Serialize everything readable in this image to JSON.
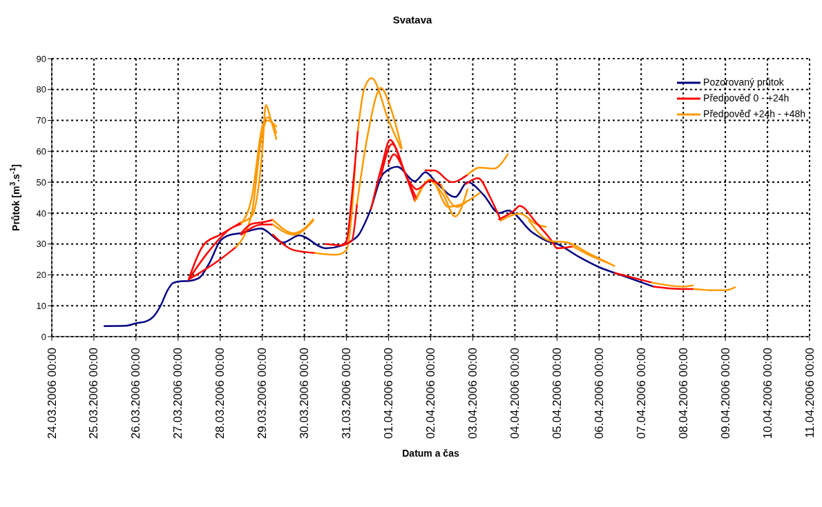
{
  "chart_data": {
    "type": "line",
    "title": "Svatava",
    "xlabel": "Datum a čas",
    "ylabel": "Průtok [m$^{3}$.s$^{-1}$]",
    "xlim": [
      "2006-03-24T00:00",
      "2006-04-11T00:00"
    ],
    "xticks": [
      {
        "value": "2006-03-24T00:00",
        "label": "24.03.2006 00:00"
      },
      {
        "value": "2006-03-25T00:00",
        "label": "25.03.2006 00:00"
      },
      {
        "value": "2006-03-26T00:00",
        "label": "26.03.2006 00:00"
      },
      {
        "value": "2006-03-27T00:00",
        "label": "27.03.2006 00:00"
      },
      {
        "value": "2006-03-28T00:00",
        "label": "28.03.2006 00:00"
      },
      {
        "value": "2006-03-29T00:00",
        "label": "29.03.2006 00:00"
      },
      {
        "value": "2006-03-30T00:00",
        "label": "30.03.2006 00:00"
      },
      {
        "value": "2006-03-31T00:00",
        "label": "31.03.2006 00:00"
      },
      {
        "value": "2006-04-01T00:00",
        "label": "01.04.2006 00:00"
      },
      {
        "value": "2006-04-02T00:00",
        "label": "02.04.2006 00:00"
      },
      {
        "value": "2006-04-03T00:00",
        "label": "03.04.2006 00:00"
      },
      {
        "value": "2006-04-04T00:00",
        "label": "04.04.2006 00:00"
      },
      {
        "value": "2006-04-05T00:00",
        "label": "05.04.2006 00:00"
      },
      {
        "value": "2006-04-06T00:00",
        "label": "06.04.2006 00:00"
      },
      {
        "value": "2006-04-07T00:00",
        "label": "07.04.2006 00:00"
      },
      {
        "value": "2006-04-08T00:00",
        "label": "08.04.2006 00:00"
      },
      {
        "value": "2006-04-09T00:00",
        "label": "09.04.2006 00:00"
      },
      {
        "value": "2006-04-10T00:00",
        "label": "10.04.2006 00:00"
      },
      {
        "value": "2006-04-11T00:00",
        "label": "11.04.2006 00:00"
      }
    ],
    "ylim": [
      0,
      90
    ],
    "yticks": [
      0,
      10,
      20,
      30,
      40,
      50,
      60,
      70,
      80,
      90
    ],
    "grid": true,
    "legend": "top right",
    "line_style": "solid",
    "series": [
      {
        "name": "Pozorovaný průtok",
        "color": "#000080",
        "x": [
          "2006-03-25T06:00",
          "2006-03-25T18:00",
          "2006-03-26T00:00",
          "2006-03-26T06:00",
          "2006-03-26T10:00",
          "2006-03-26T14:00",
          "2006-03-26T18:00",
          "2006-03-26T21:00",
          "2006-03-27T00:00",
          "2006-03-27T07:00",
          "2006-03-27T12:00",
          "2006-03-27T18:00",
          "2006-03-28T00:00",
          "2006-03-28T06:00",
          "2006-03-28T12:00",
          "2006-03-28T23:00",
          "2006-03-29T12:00",
          "2006-03-29T21:00",
          "2006-03-30T12:00",
          "2006-03-30T21:00",
          "2006-03-31T01:00",
          "2006-03-31T07:00",
          "2006-03-31T13:00",
          "2006-03-31T21:00",
          "2006-04-01T05:00",
          "2006-04-01T15:00",
          "2006-04-01T21:00",
          "2006-04-02T03:00",
          "2006-04-02T14:00",
          "2006-04-02T21:00",
          "2006-04-03T06:00",
          "2006-04-03T15:00",
          "2006-04-03T20:00",
          "2006-04-04T10:00",
          "2006-04-04T18:00",
          "2006-04-05T00:00",
          "2006-04-05T12:00",
          "2006-04-06T00:00",
          "2006-04-06T12:00",
          "2006-04-07T07:00"
        ],
        "values": [
          3.4,
          3.5,
          4.3,
          5,
          6.5,
          10,
          15,
          17.3,
          17.8,
          18.1,
          19,
          24,
          31,
          33,
          33.5,
          35,
          30.5,
          32.8,
          28.6,
          29.4,
          30.5,
          33,
          40,
          52.8,
          55,
          50.3,
          53.2,
          50,
          45.2,
          50,
          46,
          40,
          40.8,
          33.7,
          31,
          30,
          26,
          22.5,
          20,
          16.2
        ]
      },
      {
        "name": "Předpověď 0 - +24h",
        "color": "#ff0000",
        "x": [
          "2006-03-27T06:00",
          "2006-03-27T15:00",
          "2006-03-28T00:00",
          "2006-03-28T12:00"
        ],
        "values": [
          18.5,
          30,
          33,
          37
        ]
      },
      {
        "name": "Předpověď +24h - +48h",
        "color": "#ff9900",
        "x": [
          "2006-03-28T12:00",
          "2006-03-28T18:00",
          "2006-03-29T00:00",
          "2006-03-29T02:00",
          "2006-03-29T05:00",
          "2006-03-29T08:00"
        ],
        "values": [
          37,
          39,
          60,
          75,
          70,
          64
        ]
      },
      {
        "color": "#ff0000",
        "x": [
          "2006-03-27T06:00",
          "2006-03-27T18:00",
          "2006-03-28T06:00",
          "2006-03-28T12:00"
        ],
        "values": [
          18.5,
          28,
          35,
          36.5
        ]
      },
      {
        "color": "#ff9900",
        "x": [
          "2006-03-28T12:00",
          "2006-03-28T18:00",
          "2006-03-29T00:00",
          "2006-03-29T03:00",
          "2006-03-29T08:00"
        ],
        "values": [
          36.5,
          45,
          68,
          71,
          66
        ]
      },
      {
        "color": "#ff0000",
        "x": [
          "2006-03-27T06:00",
          "2006-03-28T00:00",
          "2006-03-28T09:00"
        ],
        "values": [
          18.5,
          25,
          29
        ]
      },
      {
        "color": "#ff9900",
        "x": [
          "2006-03-28T09:00",
          "2006-03-28T18:00",
          "2006-03-29T00:00",
          "2006-03-29T03:00",
          "2006-03-29T08:00"
        ],
        "values": [
          29,
          40,
          66,
          70,
          68
        ]
      },
      {
        "color": "#ff0000",
        "x": [
          "2006-03-28T12:00",
          "2006-03-28T18:00",
          "2006-03-29T00:00",
          "2006-03-29T06:00"
        ],
        "values": [
          33.5,
          36.5,
          37,
          37.8
        ]
      },
      {
        "color": "#ff9900",
        "x": [
          "2006-03-29T06:00",
          "2006-03-29T18:00",
          "2006-03-30T00:00",
          "2006-03-30T05:00"
        ],
        "values": [
          37.8,
          33.5,
          35,
          38
        ]
      },
      {
        "color": "#ff0000",
        "x": [
          "2006-03-28T12:00",
          "2006-03-29T00:00",
          "2006-03-29T06:00"
        ],
        "values": [
          33,
          36.3,
          36.3
        ]
      },
      {
        "color": "#ff9900",
        "x": [
          "2006-03-29T06:00",
          "2006-03-29T18:00",
          "2006-03-30T05:00"
        ],
        "values": [
          36.3,
          33,
          37.5
        ]
      },
      {
        "color": "#ff0000",
        "x": [
          "2006-03-29T06:00",
          "2006-03-29T18:00",
          "2006-03-30T06:00"
        ],
        "values": [
          33,
          28,
          27.1
        ]
      },
      {
        "color": "#ff9900",
        "x": [
          "2006-03-30T06:00",
          "2006-03-30T18:00",
          "2006-03-31T00:00",
          "2006-03-31T03:00",
          "2006-03-31T05:00"
        ],
        "values": [
          27.1,
          26.5,
          28,
          40,
          56
        ]
      },
      {
        "color": "#ff0000",
        "x": [
          "2006-03-30T12:00",
          "2006-03-30T21:00",
          "2006-03-31T00:00",
          "2006-03-31T03:00",
          "2006-03-31T06:30"
        ],
        "values": [
          30,
          29.6,
          31,
          45,
          66.7
        ]
      },
      {
        "color": "#ff9900",
        "x": [
          "2006-03-31T06:30",
          "2006-03-31T10:00",
          "2006-03-31T14:20",
          "2006-04-01T00:00",
          "2006-04-01T07:00"
        ],
        "values": [
          66.7,
          80,
          83.7,
          70,
          61
        ]
      },
      {
        "color": "#ff0000",
        "x": [
          "2006-03-30T21:00",
          "2006-03-31T03:00",
          "2006-03-31T06:00"
        ],
        "values": [
          29.5,
          31,
          43
        ]
      },
      {
        "color": "#ff9900",
        "x": [
          "2006-03-31T06:00",
          "2006-03-31T12:00",
          "2006-03-31T19:40",
          "2006-04-01T00:00",
          "2006-04-01T07:30"
        ],
        "values": [
          43,
          65,
          80.5,
          76,
          61
        ]
      },
      {
        "color": "#ff0000",
        "x": [
          "2006-03-31T14:00",
          "2006-03-31T20:00",
          "2006-04-01T00:50",
          "2006-04-01T08:00",
          "2006-04-01T15:00"
        ],
        "values": [
          41.3,
          55,
          63.7,
          55,
          43.9
        ]
      },
      {
        "color": "#ff9900",
        "x": [
          "2006-04-01T15:00",
          "2006-04-01T23:00",
          "2006-04-02T07:00",
          "2006-04-02T14:00",
          "2006-04-02T21:00"
        ],
        "values": [
          43.9,
          50.5,
          46,
          38.9,
          47.7
        ]
      },
      {
        "color": "#ff0000",
        "x": [
          "2006-03-31T19:40",
          "2006-04-01T02:00",
          "2006-04-01T10:00",
          "2006-04-01T16:00"
        ],
        "values": [
          51.9,
          62.4,
          52,
          44.6
        ]
      },
      {
        "color": "#ff9900",
        "x": [
          "2006-04-01T16:00",
          "2006-04-02T00:00",
          "2006-04-02T10:00",
          "2006-04-02T18:00",
          "2006-04-03T04:00"
        ],
        "values": [
          44.6,
          51,
          42,
          43,
          46.5
        ]
      },
      {
        "color": "#ff0000",
        "x": [
          "2006-04-01T00:00",
          "2006-04-01T03:00",
          "2006-04-01T12:00",
          "2006-04-01T16:00",
          "2006-04-02T00:00",
          "2006-04-02T06:00"
        ],
        "values": [
          56,
          59,
          50,
          47.7,
          50.5,
          49
        ]
      },
      {
        "color": "#ff9900",
        "x": [
          "2006-04-02T06:00",
          "2006-04-02T15:00",
          "2006-04-02T21:00"
        ],
        "values": [
          49,
          42,
          44
        ]
      },
      {
        "color": "#ff0000",
        "x": [
          "2006-04-01T21:00",
          "2006-04-02T02:00",
          "2006-04-02T12:00",
          "2006-04-02T21:00"
        ],
        "values": [
          53.8,
          53.8,
          50,
          52.4
        ]
      },
      {
        "color": "#ff9900",
        "x": [
          "2006-04-02T21:00",
          "2006-04-03T04:00",
          "2006-04-03T12:00",
          "2006-04-03T20:00"
        ],
        "values": [
          52.4,
          54.7,
          54.4,
          59.1
        ]
      },
      {
        "color": "#ff0000",
        "x": [
          "2006-04-02T20:00",
          "2006-04-03T03:00",
          "2006-04-03T10:00",
          "2006-04-03T16:00"
        ],
        "values": [
          49.4,
          51.3,
          45,
          37.6
        ]
      },
      {
        "color": "#ff9900",
        "x": [
          "2006-04-03T16:00",
          "2006-04-04T03:00",
          "2006-04-04T12:00",
          "2006-04-04T17:45"
        ],
        "values": [
          37.6,
          39.8,
          36.5,
          35.5
        ]
      },
      {
        "color": "#ff0000",
        "x": [
          "2006-04-03T15:00",
          "2006-04-04T00:00",
          "2006-04-04T02:40",
          "2006-04-04T12:00",
          "2006-04-04T21:00",
          "2006-04-05T00:00",
          "2006-04-05T09:00"
        ],
        "values": [
          38,
          41,
          42.3,
          37,
          31,
          28.6,
          29.2
        ]
      },
      {
        "color": "#ff9900",
        "x": [
          "2006-04-05T09:00",
          "2006-04-05T18:00",
          "2006-04-06T06:15"
        ],
        "values": [
          29.2,
          26.5,
          23.6
        ]
      },
      {
        "color": "#ff9900",
        "x": [
          "2006-04-04T08:00",
          "2006-04-04T20:00",
          "2006-04-05T06:00",
          "2006-04-05T18:00",
          "2006-04-06T08:40"
        ],
        "values": [
          37.6,
          31,
          30.5,
          27,
          22.9
        ]
      },
      {
        "color": "#ff0000",
        "x": [
          "2006-04-06T09:00",
          "2006-04-07T06:00"
        ],
        "values": [
          20.6,
          17.5
        ]
      },
      {
        "color": "#ff9900",
        "x": [
          "2006-04-07T06:00",
          "2006-04-08T00:00",
          "2006-04-08T05:30"
        ],
        "values": [
          17.5,
          16.2,
          16.6
        ]
      },
      {
        "color": "#ff0000",
        "x": [
          "2006-04-07T07:00",
          "2006-04-08T00:00",
          "2006-04-08T06:00"
        ],
        "values": [
          16.2,
          15.4,
          15.4
        ]
      },
      {
        "color": "#ff9900",
        "x": [
          "2006-04-08T06:00",
          "2006-04-08T18:00",
          "2006-04-09T00:00",
          "2006-04-09T05:30"
        ],
        "values": [
          15.4,
          15,
          15,
          16
        ]
      }
    ]
  }
}
